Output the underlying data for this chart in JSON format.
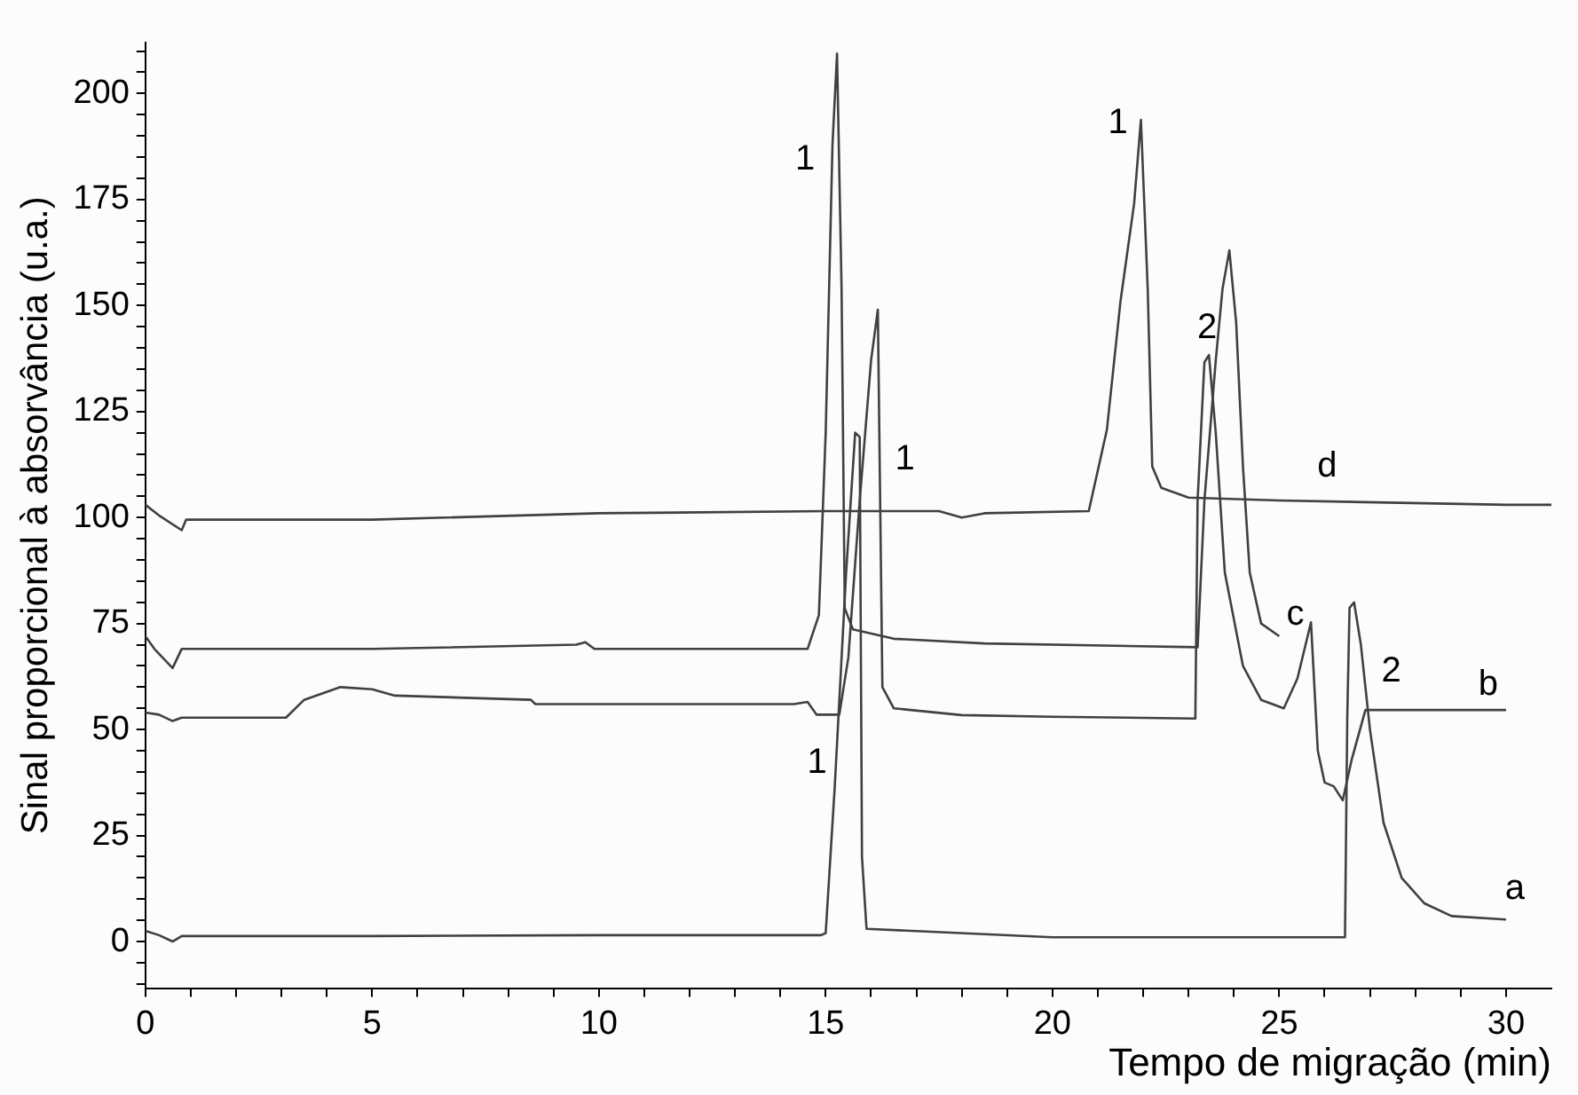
{
  "chart_data": {
    "type": "line",
    "xlabel": "Tempo de migração (min)",
    "ylabel": "Sinal proporcional à absorvância (u.a.)",
    "xlim": [
      0,
      31
    ],
    "ylim": [
      -11,
      212
    ],
    "xticks": [
      0,
      {
        "value": 1,
        "label": null
      },
      {
        "value": 2,
        "label": null
      },
      {
        "value": 3,
        "label": null
      },
      {
        "value": 4,
        "label": null
      },
      5,
      {
        "value": 6,
        "label": null
      },
      {
        "value": 7,
        "label": null
      },
      {
        "value": 8,
        "label": null
      },
      {
        "value": 9,
        "label": null
      },
      10,
      {
        "value": 11,
        "label": null
      },
      {
        "value": 12,
        "label": null
      },
      {
        "value": 13,
        "label": null
      },
      {
        "value": 14,
        "label": null
      },
      15,
      {
        "value": 16,
        "label": null
      },
      {
        "value": 17,
        "label": null
      },
      {
        "value": 18,
        "label": null
      },
      {
        "value": 19,
        "label": null
      },
      20,
      {
        "value": 21,
        "label": null
      },
      {
        "value": 22,
        "label": null
      },
      {
        "value": 23,
        "label": null
      },
      {
        "value": 24,
        "label": null
      },
      25,
      {
        "value": 26,
        "label": null
      },
      {
        "value": 27,
        "label": null
      },
      {
        "value": 28,
        "label": null
      },
      {
        "value": 29,
        "label": null
      },
      30
    ],
    "yticks": [
      {
        "value": -10,
        "label": null
      },
      {
        "value": -5,
        "label": null
      },
      0,
      {
        "value": 5,
        "label": null
      },
      {
        "value": 10,
        "label": null
      },
      {
        "value": 15,
        "label": null
      },
      {
        "value": 20,
        "label": null
      },
      25,
      {
        "value": 30,
        "label": null
      },
      {
        "value": 35,
        "label": null
      },
      {
        "value": 40,
        "label": null
      },
      {
        "value": 45,
        "label": null
      },
      50,
      {
        "value": 55,
        "label": null
      },
      {
        "value": 60,
        "label": null
      },
      {
        "value": 65,
        "label": null
      },
      {
        "value": 70,
        "label": null
      },
      75,
      {
        "value": 80,
        "label": null
      },
      {
        "value": 85,
        "label": null
      },
      {
        "value": 90,
        "label": null
      },
      {
        "value": 95,
        "label": null
      },
      100,
      {
        "value": 105,
        "label": null
      },
      {
        "value": 110,
        "label": null
      },
      {
        "value": 115,
        "label": null
      },
      {
        "value": 120,
        "label": null
      },
      125,
      {
        "value": 130,
        "label": null
      },
      {
        "value": 135,
        "label": null
      },
      {
        "value": 140,
        "label": null
      },
      {
        "value": 145,
        "label": null
      },
      150,
      {
        "value": 155,
        "label": null
      },
      {
        "value": 160,
        "label": null
      },
      {
        "value": 165,
        "label": null
      },
      {
        "value": 170,
        "label": null
      },
      175,
      {
        "value": 180,
        "label": null
      },
      {
        "value": 185,
        "label": null
      },
      {
        "value": 190,
        "label": null
      },
      {
        "value": 195,
        "label": null
      },
      200,
      {
        "value": 205,
        "label": null
      },
      {
        "value": 210,
        "label": null
      }
    ],
    "grid": false,
    "legend": false,
    "marker": "none",
    "line_style": "solid",
    "series": [
      {
        "color": "#404040",
        "x": [
          0,
          0.3,
          0.6,
          0.8,
          5,
          10,
          14.9,
          15.0,
          15.2,
          15.45,
          15.65,
          15.75,
          15.8,
          15.9,
          20,
          26.45,
          26.5,
          26.55,
          26.65,
          26.8,
          27.0,
          27.3,
          27.7,
          28.2,
          28.8,
          30
        ],
        "values": [
          2.5,
          1.5,
          0,
          1.3,
          1.3,
          1.5,
          1.5,
          2,
          36.6,
          87,
          120,
          119,
          20,
          3,
          1,
          1,
          53,
          78.7,
          80,
          70,
          50,
          28,
          15,
          9,
          6,
          5.2
        ]
      },
      {
        "color": "#404040",
        "x": [
          0,
          0.3,
          0.6,
          0.8,
          3.1,
          3.5,
          4.3,
          5,
          5.5,
          8.5,
          8.6,
          14.3,
          14.6,
          14.8,
          15.3,
          15.5,
          15.75,
          16.0,
          16.15,
          16.2,
          16.25,
          16.5,
          18,
          20,
          23.15,
          23.2,
          23.35,
          23.45,
          23.6,
          23.8,
          24.2,
          24.6,
          25.1,
          25.4,
          25.7,
          25.85,
          26.0,
          26.2,
          26.4,
          26.6,
          26.9,
          30
        ],
        "values": [
          54,
          53.5,
          52,
          52.8,
          52.8,
          57,
          60,
          59.5,
          58,
          57,
          56,
          56,
          56.5,
          53.5,
          53.5,
          67,
          104,
          137,
          149,
          104.5,
          60,
          55,
          53.4,
          53,
          52.6,
          104,
          136.6,
          138.3,
          120,
          87,
          65,
          57,
          55,
          62,
          75.3,
          45,
          37.5,
          36.6,
          33.3,
          43,
          54.6,
          54.6
        ]
      },
      {
        "color": "#404040",
        "x": [
          0,
          0.2,
          0.6,
          0.8,
          5,
          9.5,
          9.7,
          9.9,
          14.6,
          14.85,
          15.0,
          15.15,
          15.25,
          15.35,
          15.42,
          15.6,
          16.5,
          18.5,
          23.2,
          23.35,
          23.6,
          23.75,
          23.9,
          24.05,
          24.2,
          24.35,
          24.6,
          25.0
        ],
        "values": [
          72,
          69,
          64.5,
          69,
          69,
          70,
          70.6,
          69,
          69,
          77,
          120,
          188,
          209.4,
          154,
          78.6,
          73.6,
          71.4,
          70.3,
          69.4,
          104,
          137,
          154,
          163,
          146,
          112,
          87,
          75,
          72
        ]
      },
      {
        "color": "#404040",
        "x": [
          0,
          0.3,
          0.8,
          0.9,
          5,
          10,
          15,
          17.5,
          18,
          18.5,
          20.8,
          21.2,
          21.5,
          21.8,
          21.95,
          22.1,
          22.2,
          22.4,
          23,
          25,
          30,
          31
        ],
        "values": [
          103,
          100.5,
          97,
          99.5,
          99.5,
          101,
          101.5,
          101.5,
          100,
          101,
          101.5,
          120.7,
          151,
          174,
          193.8,
          154,
          112,
          107,
          104.7,
          104,
          103,
          103
        ]
      }
    ],
    "annotations": [
      {
        "text": "1",
        "x": 15.25,
        "y": 209.4
      },
      {
        "text": "1",
        "x": 21.95,
        "y": 193.8
      },
      {
        "text": "1",
        "x": 16.2,
        "y": 104.5
      },
      {
        "text": "1",
        "x": 15.2,
        "y": 36.6
      },
      {
        "text": "2",
        "x": 23.45,
        "y": 138.3
      },
      {
        "text": "2",
        "x": 26.65,
        "y": 80
      },
      {
        "text": "d",
        "x": 25,
        "y": 104
      },
      {
        "text": "c",
        "x": 25,
        "y": 72
      },
      {
        "text": "b",
        "x": 30,
        "y": 54.6
      },
      {
        "text": "a",
        "x": 30,
        "y": 5.2
      }
    ]
  }
}
